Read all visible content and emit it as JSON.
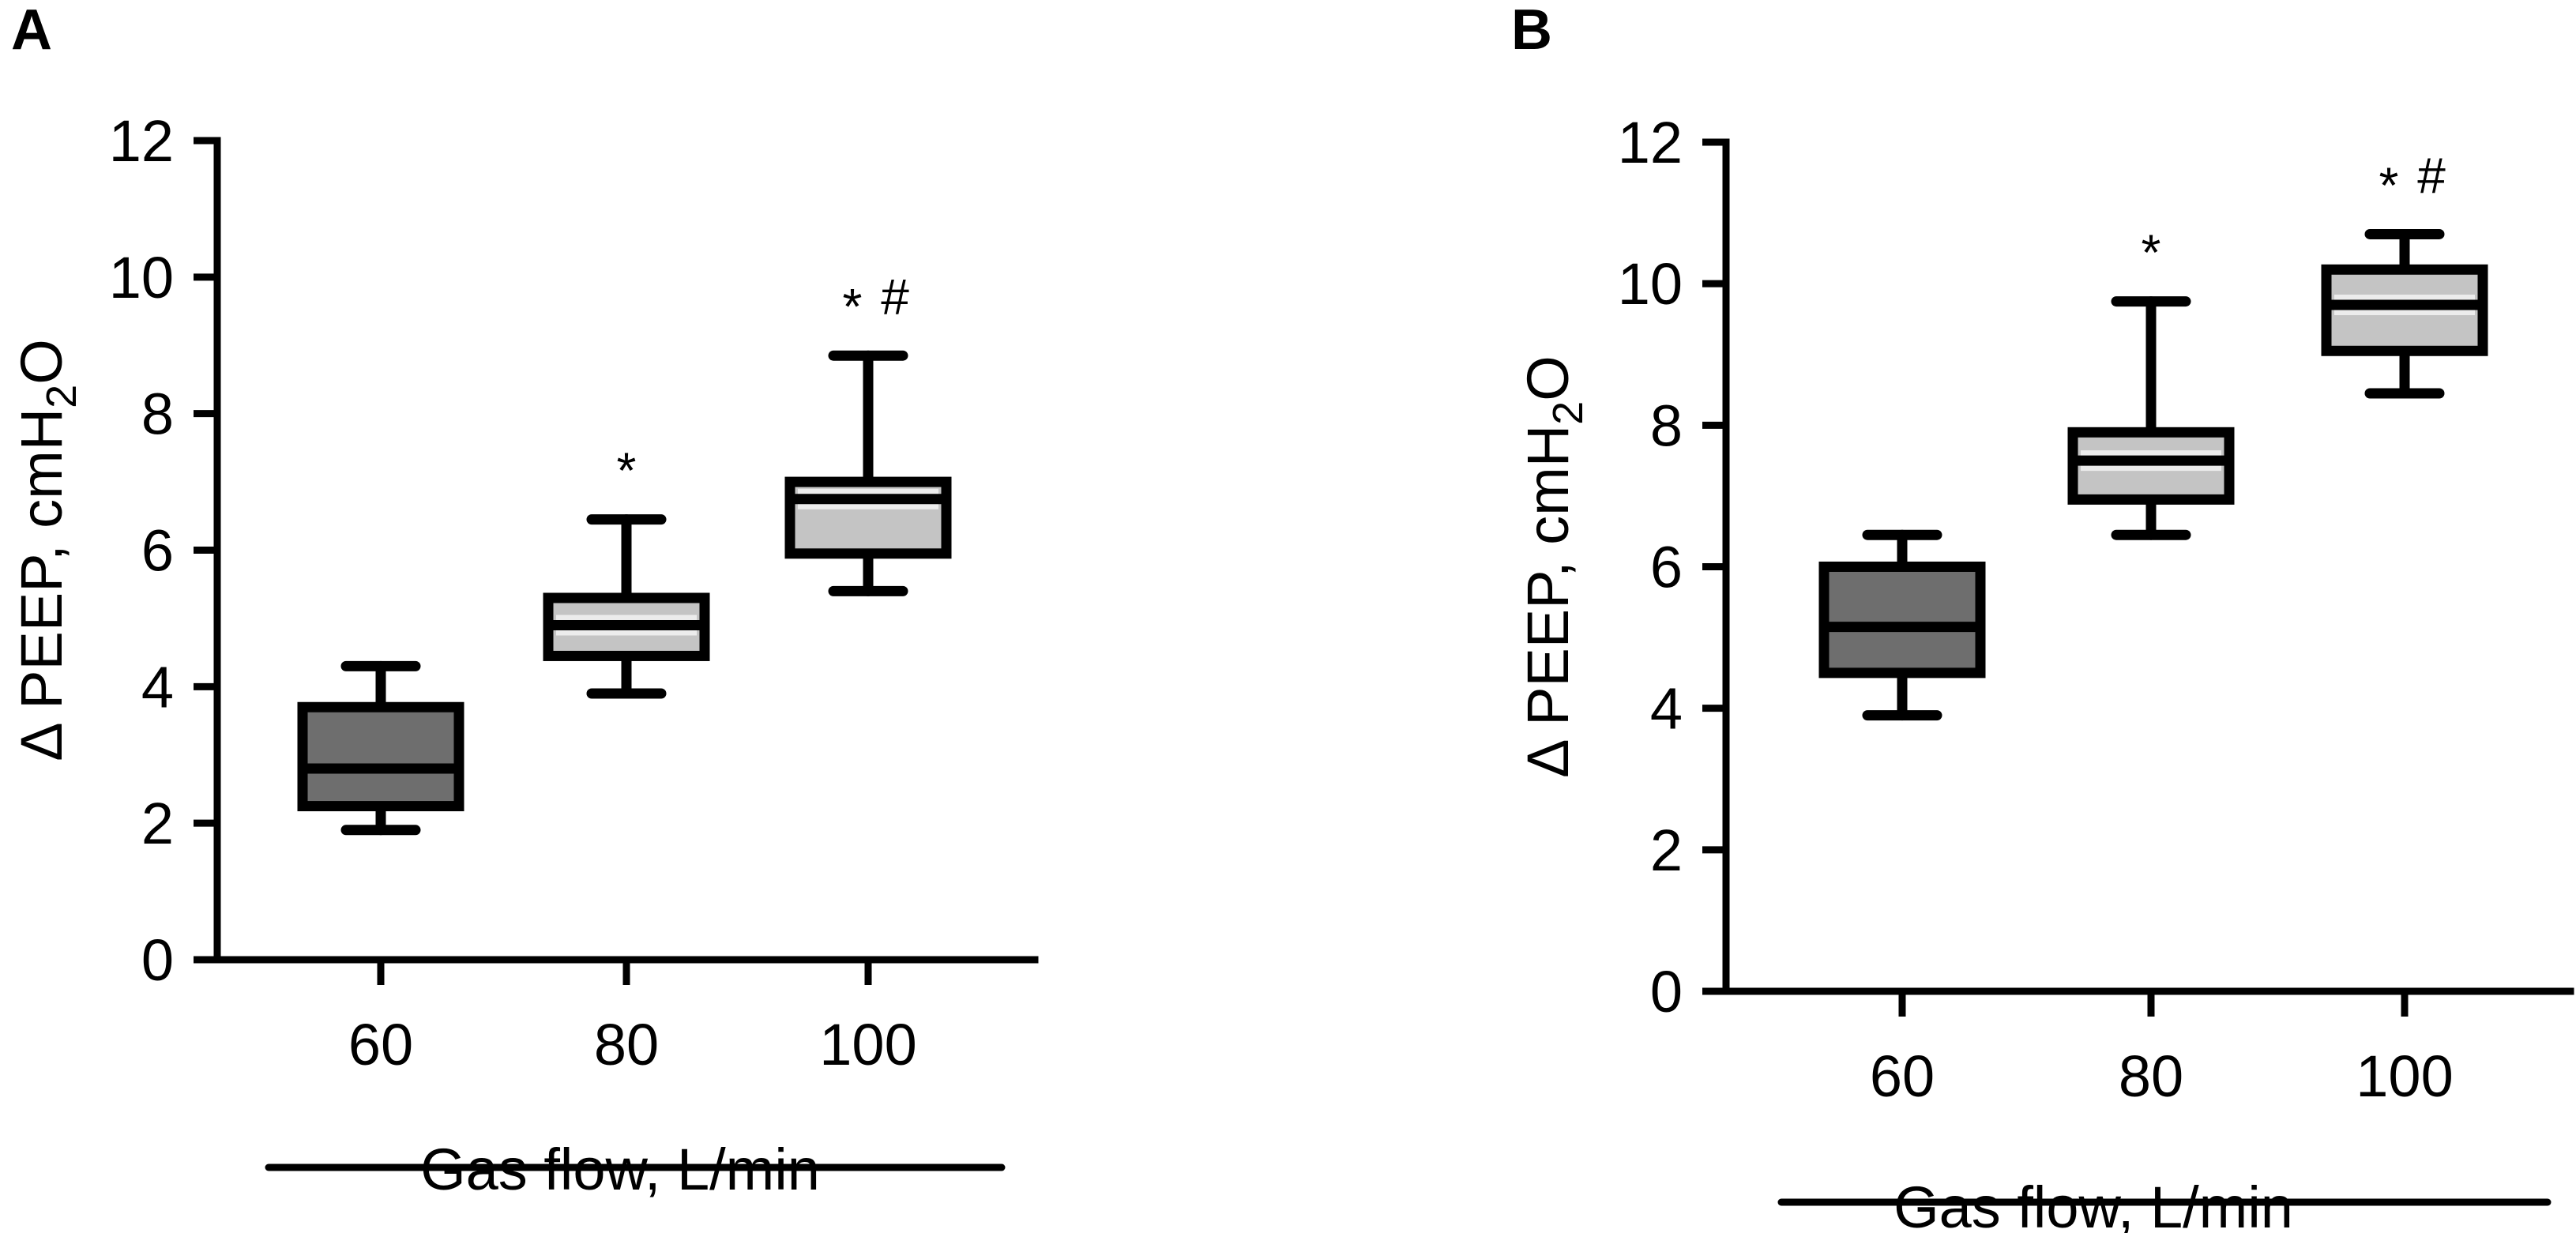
{
  "chart_data": [
    {
      "panel": "A",
      "type": "boxplot",
      "ylabel": "Δ PEEP, cmH",
      "ylabel_subscript": "2",
      "ylabel_suffix": "O",
      "xlabel": "Gas flow, L/min",
      "ylim": [
        0,
        12
      ],
      "yticks": [
        "0",
        "2",
        "4",
        "6",
        "8",
        "10",
        "12"
      ],
      "categories": [
        "60",
        "80",
        "100"
      ],
      "boxes": [
        {
          "category": "60",
          "min": 1.9,
          "q1": 2.25,
          "median": 2.8,
          "q3": 3.7,
          "max": 4.3,
          "fill": "#6e6e6e",
          "annotation": ""
        },
        {
          "category": "80",
          "min": 3.9,
          "q1": 4.45,
          "median": 4.9,
          "q3": 5.3,
          "max": 6.45,
          "fill": "#c4c4c4",
          "annotation": "*"
        },
        {
          "category": "100",
          "min": 5.4,
          "q1": 5.95,
          "median": 6.75,
          "q3": 7.0,
          "max": 8.85,
          "fill": "#c4c4c4",
          "annotation": "* #"
        }
      ]
    },
    {
      "panel": "B",
      "type": "boxplot",
      "ylabel": "Δ PEEP, cmH",
      "ylabel_subscript": "2",
      "ylabel_suffix": "O",
      "xlabel": "Gas flow, L/min",
      "ylim": [
        0,
        12
      ],
      "yticks": [
        "0",
        "2",
        "4",
        "6",
        "8",
        "10",
        "12"
      ],
      "categories": [
        "60",
        "80",
        "100"
      ],
      "boxes": [
        {
          "category": "60",
          "min": 3.9,
          "q1": 4.5,
          "median": 5.15,
          "q3": 6.0,
          "max": 6.45,
          "fill": "#6e6e6e",
          "annotation": ""
        },
        {
          "category": "80",
          "min": 6.45,
          "q1": 6.95,
          "median": 7.5,
          "q3": 7.9,
          "max": 9.75,
          "fill": "#c4c4c4",
          "annotation": "*"
        },
        {
          "category": "100",
          "min": 8.45,
          "q1": 9.05,
          "median": 9.7,
          "q3": 10.2,
          "max": 10.7,
          "fill": "#c4c4c4",
          "annotation": "* #"
        }
      ]
    }
  ]
}
